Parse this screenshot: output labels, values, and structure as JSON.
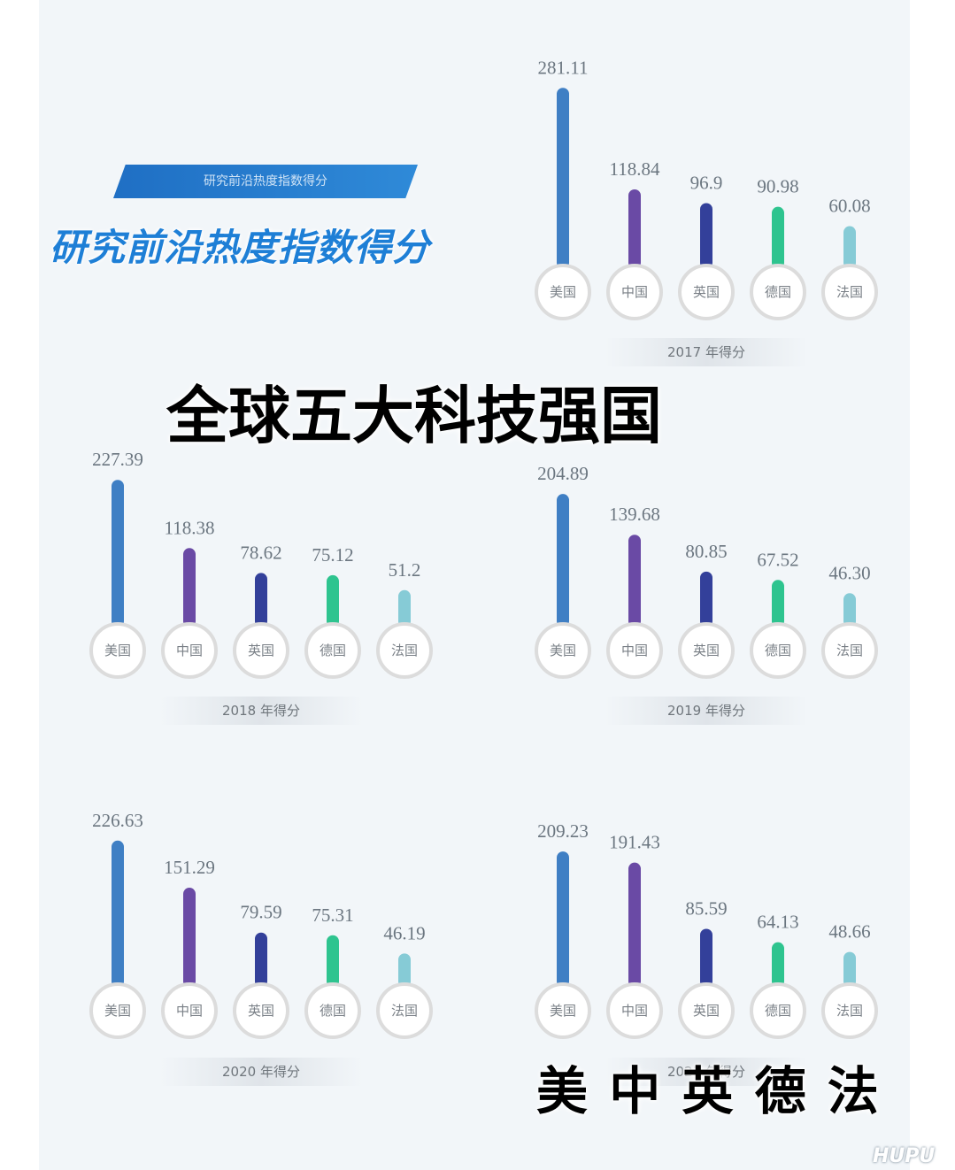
{
  "banner_text": "研究前沿热度指数得分",
  "subtitle": "研究前沿热度指数得分",
  "main_title": "全球五大科技强国",
  "country_order_text": "美 中 英 德 法",
  "watermark": "HUPU",
  "colors": {
    "美国": "#3f7fc4",
    "中国": "#6a4aa5",
    "英国": "#33409a",
    "德国": "#2ec48f",
    "法国": "#86cbd6",
    "banner": "#1f6fc4",
    "subtitle": "#1e7fd6"
  },
  "chart_data": [
    {
      "type": "bar",
      "year_label": "2017 年得分",
      "categories": [
        "美国",
        "中国",
        "英国",
        "德国",
        "法国"
      ],
      "values": [
        281.11,
        118.84,
        96.9,
        90.98,
        60.08
      ],
      "value_labels": [
        "281.11",
        "118.84",
        "96.9",
        "90.98",
        "60.08"
      ]
    },
    {
      "type": "bar",
      "year_label": "2018 年得分",
      "categories": [
        "美国",
        "中国",
        "英国",
        "德国",
        "法国"
      ],
      "values": [
        227.39,
        118.38,
        78.62,
        75.12,
        51.2
      ],
      "value_labels": [
        "227.39",
        "118.38",
        "78.62",
        "75.12",
        "51.2"
      ]
    },
    {
      "type": "bar",
      "year_label": "2019 年得分",
      "categories": [
        "美国",
        "中国",
        "英国",
        "德国",
        "法国"
      ],
      "values": [
        204.89,
        139.68,
        80.85,
        67.52,
        46.3
      ],
      "value_labels": [
        "204.89",
        "139.68",
        "80.85",
        "67.52",
        "46.30"
      ]
    },
    {
      "type": "bar",
      "year_label": "2020 年得分",
      "categories": [
        "美国",
        "中国",
        "英国",
        "德国",
        "法国"
      ],
      "values": [
        226.63,
        151.29,
        79.59,
        75.31,
        46.19
      ],
      "value_labels": [
        "226.63",
        "151.29",
        "79.59",
        "75.31",
        "46.19"
      ]
    },
    {
      "type": "bar",
      "year_label": "2021 年得分",
      "categories": [
        "美国",
        "中国",
        "英国",
        "德国",
        "法国"
      ],
      "values": [
        209.23,
        191.43,
        85.59,
        64.13,
        48.66
      ],
      "value_labels": [
        "209.23",
        "191.43",
        "85.59",
        "64.13",
        "48.66"
      ]
    }
  ]
}
